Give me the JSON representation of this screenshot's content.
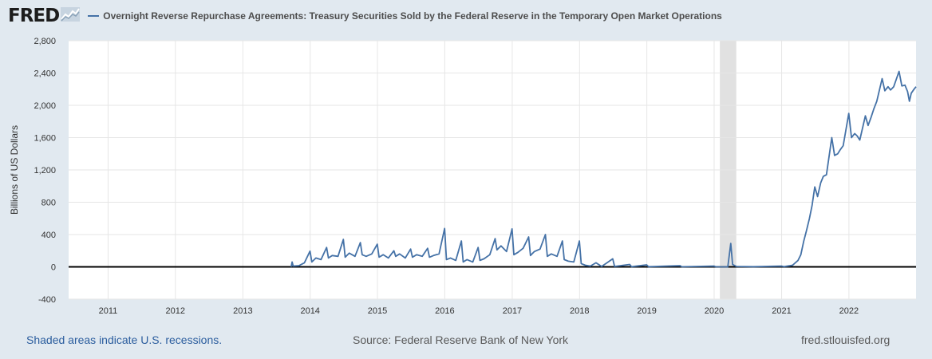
{
  "header": {
    "logo_text": "FRED",
    "logo_icon": "line-chart-icon",
    "series_title": "Overnight Reverse Repurchase Agreements: Treasury Securities Sold by the Federal Reserve in the Temporary Open Market Operations"
  },
  "footer": {
    "recession_note": "Shaded areas indicate U.S. recessions.",
    "source": "Source: Federal Reserve Bank of New York",
    "site": "fred.stlouisfed.org"
  },
  "colors": {
    "series": "#4572a7",
    "background": "#e1e9f0",
    "plot": "#ffffff",
    "recession": "#e1e1e1",
    "grid": "#e6e6e6"
  },
  "chart_data": {
    "type": "line",
    "ylabel": "Billions of US Dollars",
    "ylim": [
      -400,
      2800
    ],
    "yticks": [
      "2,800",
      "2,400",
      "2,000",
      "1,600",
      "1,200",
      "800",
      "400",
      "0",
      "-400"
    ],
    "ytick_values": [
      2800,
      2400,
      2000,
      1600,
      1200,
      800,
      400,
      0,
      -400
    ],
    "xlim": [
      "2010-06-01",
      "2022-12-31"
    ],
    "xticks": [
      "2011",
      "2012",
      "2013",
      "2014",
      "2015",
      "2016",
      "2017",
      "2018",
      "2019",
      "2020",
      "2021",
      "2022"
    ],
    "grid": true,
    "zero_line": true,
    "recessions": [
      {
        "start": "2020-02-01",
        "end": "2020-04-30"
      }
    ],
    "series": [
      {
        "name": "Overnight Reverse Repurchase Agreements: Treasury Securities Sold by the Federal Reserve in the Temporary Open Market Operations",
        "points": [
          [
            "2013-09-20",
            0
          ],
          [
            "2013-09-25",
            60
          ],
          [
            "2013-10-01",
            10
          ],
          [
            "2013-11-01",
            15
          ],
          [
            "2013-12-01",
            50
          ],
          [
            "2013-12-31",
            195
          ],
          [
            "2014-01-10",
            60
          ],
          [
            "2014-02-01",
            110
          ],
          [
            "2014-03-01",
            90
          ],
          [
            "2014-03-31",
            240
          ],
          [
            "2014-04-10",
            110
          ],
          [
            "2014-05-01",
            140
          ],
          [
            "2014-06-01",
            130
          ],
          [
            "2014-06-30",
            340
          ],
          [
            "2014-07-10",
            120
          ],
          [
            "2014-08-01",
            170
          ],
          [
            "2014-09-01",
            130
          ],
          [
            "2014-09-30",
            300
          ],
          [
            "2014-10-10",
            150
          ],
          [
            "2014-11-01",
            130
          ],
          [
            "2014-12-01",
            160
          ],
          [
            "2014-12-31",
            280
          ],
          [
            "2015-01-10",
            120
          ],
          [
            "2015-02-01",
            150
          ],
          [
            "2015-03-01",
            110
          ],
          [
            "2015-03-31",
            200
          ],
          [
            "2015-04-10",
            130
          ],
          [
            "2015-05-01",
            160
          ],
          [
            "2015-06-01",
            110
          ],
          [
            "2015-06-30",
            220
          ],
          [
            "2015-07-10",
            120
          ],
          [
            "2015-08-01",
            150
          ],
          [
            "2015-09-01",
            130
          ],
          [
            "2015-09-30",
            230
          ],
          [
            "2015-10-10",
            120
          ],
          [
            "2015-11-01",
            140
          ],
          [
            "2015-12-01",
            160
          ],
          [
            "2015-12-31",
            475
          ],
          [
            "2016-01-10",
            90
          ],
          [
            "2016-02-01",
            110
          ],
          [
            "2016-03-01",
            80
          ],
          [
            "2016-03-31",
            320
          ],
          [
            "2016-04-10",
            60
          ],
          [
            "2016-05-01",
            90
          ],
          [
            "2016-06-01",
            60
          ],
          [
            "2016-06-30",
            240
          ],
          [
            "2016-07-10",
            80
          ],
          [
            "2016-08-01",
            100
          ],
          [
            "2016-09-01",
            150
          ],
          [
            "2016-09-30",
            350
          ],
          [
            "2016-10-10",
            210
          ],
          [
            "2016-11-01",
            260
          ],
          [
            "2016-12-01",
            190
          ],
          [
            "2016-12-31",
            470
          ],
          [
            "2017-01-10",
            150
          ],
          [
            "2017-02-01",
            180
          ],
          [
            "2017-03-01",
            230
          ],
          [
            "2017-03-31",
            370
          ],
          [
            "2017-04-10",
            140
          ],
          [
            "2017-05-01",
            190
          ],
          [
            "2017-06-01",
            220
          ],
          [
            "2017-06-30",
            400
          ],
          [
            "2017-07-10",
            130
          ],
          [
            "2017-08-01",
            160
          ],
          [
            "2017-09-01",
            130
          ],
          [
            "2017-09-30",
            320
          ],
          [
            "2017-10-10",
            90
          ],
          [
            "2017-11-01",
            70
          ],
          [
            "2017-12-01",
            60
          ],
          [
            "2017-12-31",
            320
          ],
          [
            "2018-01-10",
            40
          ],
          [
            "2018-02-01",
            20
          ],
          [
            "2018-03-01",
            10
          ],
          [
            "2018-03-31",
            50
          ],
          [
            "2018-05-01",
            5
          ],
          [
            "2018-06-30",
            100
          ],
          [
            "2018-07-10",
            5
          ],
          [
            "2018-09-30",
            30
          ],
          [
            "2018-10-10",
            2
          ],
          [
            "2018-12-31",
            25
          ],
          [
            "2019-01-10",
            2
          ],
          [
            "2019-06-30",
            15
          ],
          [
            "2019-07-10",
            1
          ],
          [
            "2019-12-31",
            10
          ],
          [
            "2020-01-10",
            1
          ],
          [
            "2020-03-15",
            0
          ],
          [
            "2020-03-31",
            290
          ],
          [
            "2020-04-10",
            30
          ],
          [
            "2020-05-01",
            5
          ],
          [
            "2020-08-01",
            2
          ],
          [
            "2020-12-31",
            10
          ],
          [
            "2021-01-15",
            3
          ],
          [
            "2021-03-01",
            20
          ],
          [
            "2021-03-31",
            80
          ],
          [
            "2021-04-15",
            150
          ],
          [
            "2021-05-01",
            320
          ],
          [
            "2021-05-15",
            440
          ],
          [
            "2021-06-01",
            600
          ],
          [
            "2021-06-15",
            760
          ],
          [
            "2021-06-30",
            990
          ],
          [
            "2021-07-15",
            870
          ],
          [
            "2021-08-01",
            1040
          ],
          [
            "2021-08-15",
            1120
          ],
          [
            "2021-09-01",
            1140
          ],
          [
            "2021-09-30",
            1600
          ],
          [
            "2021-10-15",
            1380
          ],
          [
            "2021-11-01",
            1400
          ],
          [
            "2021-11-15",
            1450
          ],
          [
            "2021-12-01",
            1500
          ],
          [
            "2021-12-31",
            1900
          ],
          [
            "2022-01-15",
            1600
          ],
          [
            "2022-02-01",
            1650
          ],
          [
            "2022-02-15",
            1620
          ],
          [
            "2022-03-01",
            1570
          ],
          [
            "2022-03-31",
            1870
          ],
          [
            "2022-04-15",
            1750
          ],
          [
            "2022-05-01",
            1850
          ],
          [
            "2022-05-15",
            1950
          ],
          [
            "2022-06-01",
            2050
          ],
          [
            "2022-06-30",
            2330
          ],
          [
            "2022-07-15",
            2180
          ],
          [
            "2022-08-01",
            2230
          ],
          [
            "2022-08-15",
            2190
          ],
          [
            "2022-09-01",
            2230
          ],
          [
            "2022-09-30",
            2420
          ],
          [
            "2022-10-15",
            2240
          ],
          [
            "2022-11-01",
            2250
          ],
          [
            "2022-11-15",
            2170
          ],
          [
            "2022-11-25",
            2050
          ],
          [
            "2022-12-05",
            2150
          ],
          [
            "2022-12-20",
            2200
          ],
          [
            "2022-12-31",
            2230
          ]
        ]
      }
    ]
  }
}
